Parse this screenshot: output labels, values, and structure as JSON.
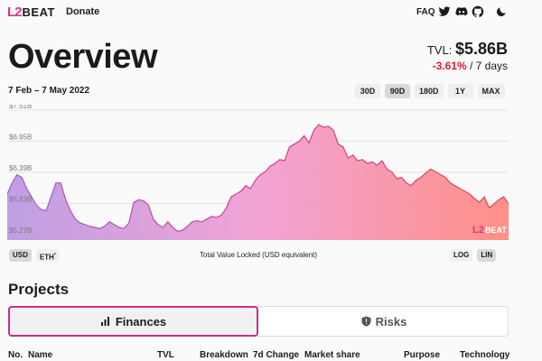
{
  "brand": {
    "mark": "L2",
    "text": "BEAT"
  },
  "header": {
    "donate": "Donate",
    "faq": "FAQ",
    "icons": [
      "twitter-icon",
      "discord-icon",
      "github-icon",
      "dark-mode-icon"
    ]
  },
  "overview": {
    "title": "Overview",
    "tvl_label": "TVL:",
    "tvl_value": "$5.86B",
    "change": "-3.61%",
    "change_period": "/ 7 days",
    "date_range": "7 Feb – 7 May 2022"
  },
  "range_buttons": [
    "30D",
    "90D",
    "180D",
    "1Y",
    "MAX"
  ],
  "range_selected": "90D",
  "chart_data": {
    "type": "area",
    "title": "",
    "xlabel": "Total Value Locked (USD equivalent)",
    "ylabel": "",
    "yticks": [
      "$7.51B",
      "$6.95B",
      "$6.39B",
      "$5.83B",
      "$5.27B"
    ],
    "ytick_values": [
      7.51,
      6.95,
      6.39,
      5.83,
      5.27
    ],
    "ylim": [
      5.27,
      7.51
    ],
    "grid": true,
    "values": [
      6.0,
      6.2,
      6.35,
      6.3,
      6.1,
      5.95,
      5.8,
      5.72,
      5.7,
      5.95,
      6.2,
      6.2,
      5.9,
      5.7,
      5.55,
      5.48,
      5.45,
      5.42,
      5.4,
      5.38,
      5.42,
      5.5,
      5.45,
      5.4,
      5.38,
      5.48,
      5.85,
      5.9,
      5.88,
      5.8,
      5.55,
      5.45,
      5.4,
      5.5,
      5.4,
      5.33,
      5.35,
      5.42,
      5.5,
      5.52,
      5.5,
      5.55,
      5.6,
      5.58,
      5.62,
      5.75,
      5.95,
      6.0,
      6.05,
      6.15,
      6.1,
      6.25,
      6.35,
      6.4,
      6.5,
      6.55,
      6.62,
      6.6,
      6.85,
      6.9,
      6.95,
      7.05,
      6.92,
      7.15,
      7.25,
      7.2,
      7.22,
      7.15,
      6.9,
      6.85,
      6.65,
      6.7,
      6.6,
      6.62,
      6.55,
      6.58,
      6.52,
      6.6,
      6.45,
      6.4,
      6.28,
      6.3,
      6.2,
      6.15,
      6.25,
      6.3,
      6.38,
      6.45,
      6.4,
      6.35,
      6.3,
      6.2,
      6.15,
      6.1,
      6.05,
      6.0,
      5.92,
      5.85,
      5.95,
      5.75,
      5.82,
      5.9,
      5.95,
      5.82
    ],
    "watermark": "L2BEAT"
  },
  "currency_buttons": [
    "USD",
    "ETH"
  ],
  "currency_selected": "USD",
  "eth_sup": "*",
  "scale_buttons": [
    "LOG",
    "LIN"
  ],
  "scale_selected": "LIN",
  "projects": {
    "heading": "Projects",
    "tabs": [
      {
        "label": "Finances",
        "icon": "bar-chart-icon"
      },
      {
        "label": "Risks",
        "icon": "shield-icon"
      }
    ],
    "columns": [
      "No.",
      "Name",
      "TVL",
      "Breakdown",
      "7d Change",
      "Market share",
      "Purpose",
      "Technology"
    ]
  },
  "colors": {
    "accent": "#c8308a",
    "negative": "#e11d2a",
    "chart_start": "#b58fe0",
    "chart_mid": "#f19ad0",
    "chart_end": "#ff8a80"
  }
}
